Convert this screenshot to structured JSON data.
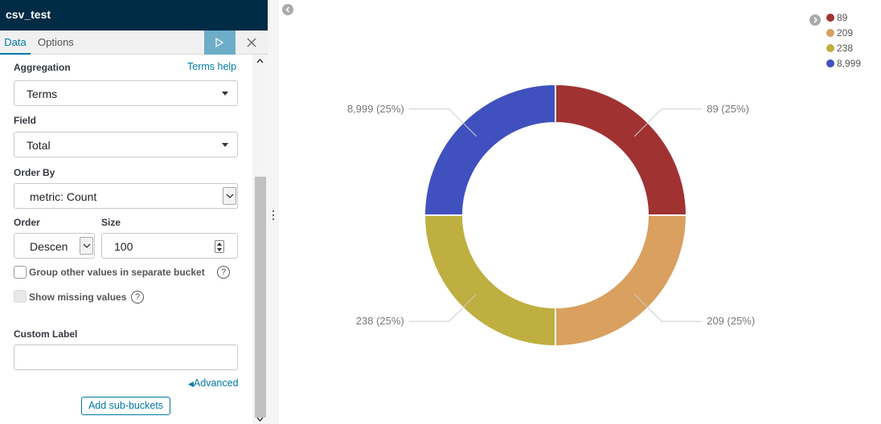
{
  "app": {
    "title": "csv_test"
  },
  "tabs": [
    {
      "label": "Data"
    },
    {
      "label": "Options"
    }
  ],
  "aggregation": {
    "label": "Aggregation",
    "help_link": "Terms help",
    "value": "Terms"
  },
  "field": {
    "label": "Field",
    "value": "Total"
  },
  "order_by": {
    "label": "Order By",
    "value": "metric: Count"
  },
  "order": {
    "label": "Order",
    "value": "Descen"
  },
  "size": {
    "label": "Size",
    "value": "100"
  },
  "group_other": {
    "label": "Group other values in separate bucket",
    "help": "?"
  },
  "show_missing": {
    "label": "Show missing values",
    "help": "?"
  },
  "custom_label": {
    "label": "Custom Label",
    "value": ""
  },
  "advanced": {
    "label": "Advanced"
  },
  "add_sub_buckets": {
    "label": "Add sub-buckets"
  },
  "icons": {
    "apply": "play-icon",
    "close": "close-icon",
    "collapse": "chevron-left-icon",
    "legend_toggle": "chevron-right-icon"
  },
  "chart_data": {
    "type": "pie",
    "donut": true,
    "slices": [
      {
        "label": "89",
        "value": 25,
        "display": "89 (25%)",
        "color": "#a03232"
      },
      {
        "label": "209",
        "value": 25,
        "display": "209 (25%)",
        "color": "#d9a060"
      },
      {
        "label": "238",
        "value": 25,
        "display": "238 (25%)",
        "color": "#bfaf40"
      },
      {
        "label": "8,999",
        "value": 25,
        "display": "8,999 (25%)",
        "color": "#4050bf"
      }
    ],
    "legend_placement": "top-right"
  }
}
